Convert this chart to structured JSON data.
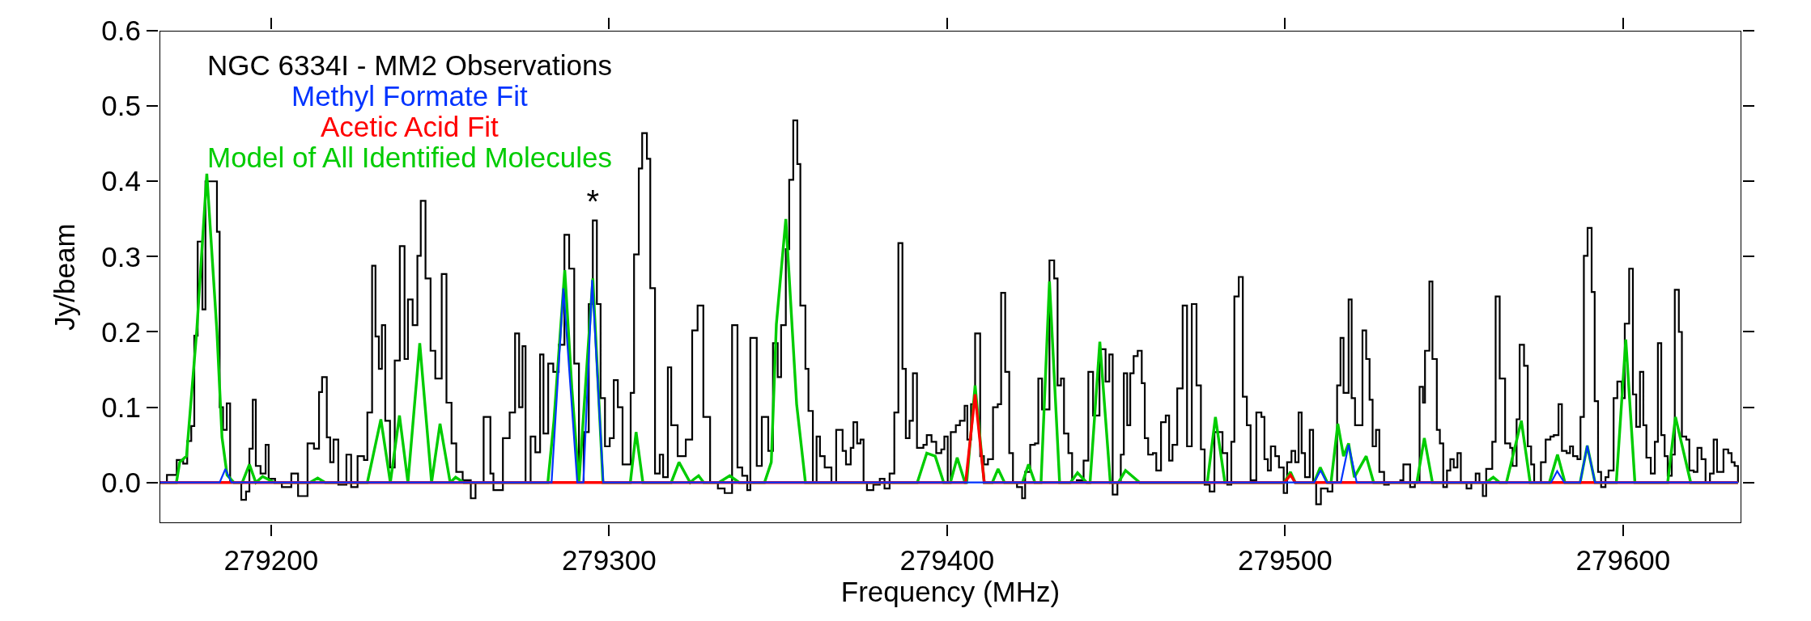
{
  "chart_data": {
    "type": "line",
    "xlabel": "Frequency (MHz)",
    "ylabel": "Jy/beam",
    "xlim": [
      279167,
      279635
    ],
    "ylim": [
      -0.054,
      0.6
    ],
    "xticks": [
      279200,
      279300,
      279400,
      279500,
      279600
    ],
    "yticks": [
      {
        "value": 0,
        "label": "0.0"
      },
      {
        "value": 0.1,
        "label": "0.1"
      },
      {
        "value": 0.2,
        "label": "0.2"
      },
      {
        "value": 0.3,
        "label": "0.3"
      },
      {
        "value": 0.4,
        "label": "0.4"
      },
      {
        "value": 0.5,
        "label": "0.5"
      },
      {
        "value": 0.6,
        "label": "0.6"
      }
    ],
    "legend": "top left",
    "marker": "none",
    "line_style": "solid",
    "annotations": [
      {
        "text": "*",
        "x": 279295.2,
        "y": 0.348
      }
    ],
    "series": [
      {
        "name": "NGC 6334I - MM2 Observations",
        "type": "step",
        "color": "#000000",
        "x": [
          279167.8,
          279169.2,
          279172.1,
          279174,
          279175.2,
          279176.4,
          279177.3,
          279178.3,
          279179.7,
          279180.6,
          279181.6,
          279183.1,
          279184,
          279184.8,
          279185.8,
          279186.9,
          279187.9,
          279189.9,
          279191.2,
          279192.6,
          279193.6,
          279194.6,
          279195.5,
          279196.9,
          279198.4,
          279199.3,
          279201.2,
          279203.2,
          279206,
          279208,
          279210.8,
          279212.7,
          279214.2,
          279215.1,
          279216.5,
          279217.5,
          279218.5,
          279219.9,
          279222.3,
          279223.7,
          279225.6,
          279227.5,
          279228.5,
          279229.9,
          279230.9,
          279231.9,
          279232.8,
          279233.8,
          279235.2,
          279236.6,
          279238.1,
          279239.5,
          279240.5,
          279241.9,
          279243.3,
          279244.3,
          279245.7,
          279247.2,
          279248.6,
          279250.5,
          279251.9,
          279253.4,
          279254.8,
          279256.7,
          279259.1,
          279260.5,
          279262.9,
          279264.9,
          279265.8,
          279268.6,
          279270.6,
          279272.2,
          279273.4,
          279274.4,
          279275.3,
          279276.8,
          279278.2,
          279279.6,
          279280.6,
          279282,
          279283.5,
          279285.1,
          279286.8,
          279288.2,
          279289.7,
          279291.1,
          279292.5,
          279294,
          279295.2,
          279296.4,
          279297.5,
          279298.8,
          279300.2,
          279301.4,
          279302.6,
          279304,
          279306.4,
          279307.4,
          279308.8,
          279309.8,
          279311.2,
          279312.2,
          279313.6,
          279315,
          279316,
          279317.4,
          279318.4,
          279320.3,
          279322.7,
          279324.6,
          279326.2,
          279327.9,
          279329.9,
          279332.2,
          279334.2,
          279336.4,
          279338,
          279339.4,
          279340.9,
          279341.8,
          279343.7,
          279345.2,
          279347.1,
          279348.5,
          279349.9,
          279350.9,
          279352.3,
          279353.3,
          279354.5,
          279355.7,
          279356.6,
          279358.1,
          279359,
          279360.3,
          279361.4,
          279362.4,
          279363.8,
          279365.8,
          279367.2,
          279369.1,
          279370.1,
          279371.5,
          279372.3,
          279373.4,
          279374.4,
          279375.3,
          279376.3,
          279378.2,
          279380.1,
          279381.5,
          279383,
          279384.4,
          279385.6,
          279386.8,
          279387.8,
          279388.9,
          279389.9,
          279391.1,
          279393,
          279394,
          279395.4,
          279396.8,
          279398.3,
          279399.2,
          279400.2,
          279401.1,
          279402.6,
          279403.8,
          279405.2,
          279406,
          279407.1,
          279408.3,
          279409.8,
          279410.9,
          279412.1,
          279413.6,
          279415,
          279416,
          279417.2,
          279418.4,
          279419.5,
          279420.7,
          279422.2,
          279423.1,
          279424.6,
          279426,
          279427,
          279428.1,
          279430.3,
          279431.7,
          279432.7,
          279433.7,
          279434.6,
          279435.9,
          279437,
          279438.4,
          279440.4,
          279441.8,
          279443.2,
          279445.1,
          279446.9,
          279448,
          279449,
          279450.4,
          279451.4,
          279452.3,
          279453.3,
          279454.2,
          279455.2,
          279456.4,
          279457.6,
          279458.5,
          279459.5,
          279460.9,
          279461.9,
          279463.3,
          279464.7,
          279465.7,
          279466.7,
          279468.1,
          279469.7,
          279471,
          279472.4,
          279473.8,
          279475.1,
          279476.2,
          279477.7,
          279479.1,
          279480.2,
          279481.5,
          279482.9,
          279484.1,
          279485,
          279486.3,
          279487.5,
          279488.7,
          279489.8,
          279491.5,
          279493,
          279493.9,
          279494.9,
          279495.8,
          279497.1,
          279498.2,
          279499.6,
          279500.6,
          279501.9,
          279503,
          279504,
          279504.9,
          279505.9,
          279507.3,
          279508.3,
          279509.2,
          279510.6,
          279512.6,
          279514,
          279515.4,
          279516.4,
          279517.3,
          279518.8,
          279519.7,
          279520.7,
          279521.6,
          279522.9,
          279524,
          279525,
          279525.9,
          279526.9,
          279527.9,
          279529.3,
          279530.7,
          279532.6,
          279534.1,
          279535,
          279536,
          279537,
          279538.4,
          279539.8,
          279540.8,
          279541.4,
          279542.7,
          279543.6,
          279544.9,
          279545.8,
          279546.8,
          279547.9,
          279548.9,
          279549.9,
          279551,
          279552,
          279553.7,
          279555.1,
          279556.4,
          279557.5,
          279558.5,
          279559.5,
          279561.3,
          279562.3,
          279563.5,
          279565.1,
          279566.6,
          279567.3,
          279568.5,
          279569.4,
          279570.7,
          279571.8,
          279572.8,
          279573.7,
          279574.7,
          279575.7,
          279577.1,
          279578.5,
          279579.5,
          279580.9,
          279581.9,
          279583.3,
          279584.3,
          279585.2,
          279586.5,
          279587.4,
          279588.4,
          279589.5,
          279590.7,
          279591.6,
          279592.6,
          279593.5,
          279594.8,
          279595.7,
          279597.2,
          279598.3,
          279599.6,
          279600.5,
          279601.8,
          279602.9,
          279603.9,
          279605,
          279606,
          279606.9,
          279608.2,
          279609.4,
          279610.3,
          279611.3,
          279612.3,
          279613.2,
          279614.4,
          279615.3,
          279616.5,
          279617.4,
          279618.7,
          279619.6,
          279620.9,
          279622,
          279623.2,
          279624.4,
          279625.7,
          279626.8,
          279627.8,
          279629.7,
          279631.1,
          279632.1,
          279633,
          279634
        ],
        "values": [
          0,
          0.01,
          0.03,
          0.025,
          0.055,
          0.075,
          0.195,
          0.32,
          0.23,
          0.4,
          0.4,
          0.4,
          0.333,
          0.1,
          0.07,
          0.105,
          0,
          0,
          -0.023,
          -0.012,
          0.045,
          0.11,
          0.022,
          0.012,
          0.05,
          0.005,
          0,
          -0.006,
          0.012,
          -0.018,
          0.052,
          0.045,
          0.12,
          0.14,
          0.06,
          0.027,
          0.057,
          -0.003,
          0.037,
          -0.006,
          0.035,
          0.03,
          0.093,
          0.288,
          0.194,
          0.151,
          0.209,
          0.082,
          0.02,
          0.162,
          0.314,
          0.164,
          0.243,
          0.209,
          0.301,
          0.374,
          0.271,
          0.175,
          0.138,
          0.277,
          0.106,
          0.052,
          0.014,
          0.003,
          -0.021,
          0,
          0.087,
          0.012,
          -0.01,
          0.059,
          0.093,
          0.198,
          0.1,
          0.181,
          0,
          0.061,
          0.04,
          0.17,
          0.065,
          0.158,
          0.147,
          0.183,
          0.329,
          0.284,
          0.158,
          0,
          0.067,
          0.237,
          0.348,
          0.237,
          0.112,
          0.048,
          0.059,
          0.136,
          0.1,
          0.024,
          0.119,
          0.303,
          0.417,
          0.464,
          0.43,
          0.258,
          0.012,
          0.037,
          0.007,
          0.153,
          0.076,
          0.035,
          0.057,
          0.202,
          0.235,
          0.087,
          0,
          -0.008,
          -0.014,
          0.209,
          0.02,
          0.009,
          -0.01,
          0.192,
          0.022,
          0.087,
          0.042,
          0.185,
          0.14,
          0.209,
          0.31,
          0.402,
          0.481,
          0.423,
          0.235,
          0.151,
          0.095,
          0,
          0.061,
          0.035,
          0.02,
          0,
          0.07,
          0.042,
          0.024,
          0.046,
          0.08,
          0.052,
          0.057,
          0,
          -0.01,
          -0.003,
          0.005,
          -0.008,
          0.012,
          0.093,
          0.318,
          0.151,
          0.059,
          0.082,
          0.145,
          0.046,
          0.05,
          0.063,
          0.054,
          0.039,
          0.044,
          0.061,
          0,
          0.067,
          0.076,
          0.082,
          0.102,
          0.057,
          0.104,
          0.198,
          0.035,
          0.024,
          0.031,
          0.1,
          0.104,
          0.252,
          0.147,
          0.039,
          0,
          -0.006,
          -0.021,
          0.014,
          0.05,
          0.052,
          0.138,
          0.097,
          0.295,
          0.271,
          0.129,
          0.138,
          0.065,
          0.039,
          0,
          0.003,
          0.029,
          0.147,
          0.089,
          0.177,
          0.134,
          0.17,
          -0.016,
          0,
          0.037,
          0.145,
          0.076,
          0.145,
          0.168,
          0.175,
          0.132,
          0.059,
          0.037,
          0.039,
          0.016,
          0.08,
          0.089,
          0.029,
          0.05,
          0.125,
          0.235,
          0.048,
          0.237,
          0.129,
          0.044,
          -0.003,
          -0.012,
          0.067,
          0.067,
          0.039,
          -0.003,
          0.054,
          0.247,
          0.273,
          0.114,
          0.076,
          0.003,
          0.093,
          0.087,
          0.031,
          0.016,
          0.048,
          0.035,
          0.02,
          -0.014,
          0.027,
          0.042,
          0.027,
          0.093,
          0.039,
          0.007,
          0.07,
          0,
          -0.029,
          -0.008,
          -0.012,
          0,
          0.129,
          0.192,
          0.119,
          0.243,
          0.112,
          0.076,
          0.076,
          0.202,
          0.164,
          0.11,
          0.048,
          0.07,
          0.014,
          -0.003,
          0,
          0,
          0.003,
          0.024,
          0.024,
          -0.006,
          0,
          0.127,
          0.106,
          0.175,
          0.267,
          0.164,
          0.07,
          0.052,
          -0.006,
          0.016,
          0.031,
          0.02,
          0.039,
          0,
          -0.008,
          0,
          0.012,
          0,
          -0.018,
          0.018,
          0.054,
          0.247,
          0.138,
          0.052,
          0.046,
          0.022,
          0.084,
          0.183,
          0.155,
          0.048,
          0.024,
          0,
          0,
          0.027,
          0.057,
          0.061,
          0.063,
          0.104,
          0.042,
          0.039,
          0.048,
          0.035,
          0.031,
          0.087,
          0.301,
          0.338,
          0.253,
          0.108,
          0.014,
          -0.006,
          0.007,
          0.016,
          0.112,
          0.134,
          0.112,
          0.211,
          0.284,
          0.117,
          0.074,
          0.147,
          0.076,
          0.033,
          0.012,
          0.054,
          0.185,
          0.063,
          0.035,
          0.009,
          0.037,
          0.256,
          0.2,
          0.061,
          0.057,
          0.016,
          0.014,
          0.046,
          0.031,
          0,
          0.012,
          0.057,
          0.014,
          0.044,
          0.039,
          0.027,
          0.022,
          0
        ]
      },
      {
        "name": "Methyl Formate Fit",
        "type": "line",
        "color": "#0033ff",
        "x": [
          279167,
          279184.8,
          279186.5,
          279188.3,
          279283,
          279286.5,
          279290.6,
          279292.4,
          279295,
          279298.3,
          279508.6,
          279510.5,
          279512.3,
          279516.5,
          279518.8,
          279521.2,
          279578.7,
          279580.5,
          279582.6,
          279587.3,
          279589.4,
          279591.7,
          279634
        ],
        "values": [
          0,
          0,
          0.018,
          0,
          0,
          0.258,
          0,
          0,
          0.269,
          0,
          0,
          0.016,
          0,
          0,
          0.05,
          0,
          0,
          0.015,
          0,
          0,
          0.049,
          0,
          0
        ]
      },
      {
        "name": "Acetic Acid Fit",
        "type": "line",
        "color": "#ff0000",
        "x": [
          279167,
          279405.5,
          279408.3,
          279411,
          279499.8,
          279501.6,
          279503,
          279634
        ],
        "values": [
          0,
          0,
          0.117,
          0,
          0,
          0.01,
          0,
          0
        ]
      },
      {
        "name": "Model of All Identified Molecules",
        "type": "line",
        "color": "#00cc00",
        "x": [
          279167,
          279172,
          279173,
          279175,
          279178,
          279181,
          279184,
          279185.5,
          279187,
          279189,
          279191.5,
          279193.6,
          279195.5,
          279197.5,
          279201,
          279211.5,
          279213.8,
          279216,
          279228.5,
          279232.5,
          279235.3,
          279238,
          279240.5,
          279244,
          279247.5,
          279250,
          279253,
          279254.6,
          279257,
          279281.9,
          279283.7,
          279286.9,
          279289,
          279291.1,
          279295.2,
          279298.2,
          279306.3,
          279308,
          279310,
          279318.4,
          279320.7,
          279324,
          279325,
          279326.5,
          279328,
          279332.5,
          279335.7,
          279338.5,
          279346,
          279348,
          279349.5,
          279352.3,
          279355.5,
          279358.1,
          279361,
          279391.2,
          279394,
          279396.5,
          279399,
          279401,
          279403,
          279405.3,
          279405.8,
          279408.3,
          279411,
          279413.4,
          279415.1,
          279417,
          279422.3,
          279424.1,
          279426,
          279427.8,
          279430.3,
          279433.3,
          279436.5,
          279438.6,
          279441.3,
          279442.3,
          279445.2,
          279448.3,
          279450.7,
          279452.8,
          279457,
          279477,
          279479.4,
          279482.2,
          279499.8,
          279501.6,
          279503,
          279508.6,
          279510.4,
          279512.5,
          279513.6,
          279515.6,
          279517.3,
          279518.8,
          279520.5,
          279524,
          279526.2,
          279539,
          279541.2,
          279543.6,
          279559.5,
          279561.6,
          279563.5,
          279565.5,
          279569.9,
          279572.5,
          279578.2,
          279580.6,
          279582.8,
          279587.3,
          279589.4,
          279591.7,
          279598,
          279600.8,
          279603.5,
          279613.2,
          279615.5,
          279620,
          279634
        ],
        "values": [
          0,
          0,
          0.027,
          0.035,
          0.2,
          0.41,
          0.2,
          0.06,
          0.01,
          0,
          0,
          0.024,
          0,
          0.008,
          0,
          0,
          0.006,
          0,
          0,
          0.084,
          0,
          0.089,
          0,
          0.185,
          0,
          0.078,
          0,
          0.007,
          0,
          0,
          0.082,
          0.282,
          0.125,
          0,
          0.271,
          0,
          0,
          0.067,
          0,
          0,
          0.027,
          0,
          0.004,
          0.009,
          0,
          0,
          0.009,
          0,
          0,
          0.027,
          0.21,
          0.35,
          0.104,
          0,
          0,
          0,
          0.039,
          0.035,
          0,
          0,
          0.033,
          0,
          0,
          0.129,
          0,
          0,
          0.018,
          0,
          0,
          0.024,
          0,
          0,
          0.267,
          0,
          0,
          0.013,
          0,
          0,
          0.187,
          0,
          0,
          0.016,
          0,
          0,
          0.087,
          0,
          0,
          0.014,
          0,
          0,
          0.02,
          0,
          0,
          0.078,
          0.035,
          0.052,
          0.007,
          0.035,
          0,
          0,
          0.059,
          0,
          0,
          0.007,
          0,
          0,
          0.082,
          0,
          0,
          0.037,
          0,
          0,
          0.049,
          0,
          0,
          0.19,
          0,
          0,
          0.087,
          0,
          0
        ]
      }
    ]
  }
}
